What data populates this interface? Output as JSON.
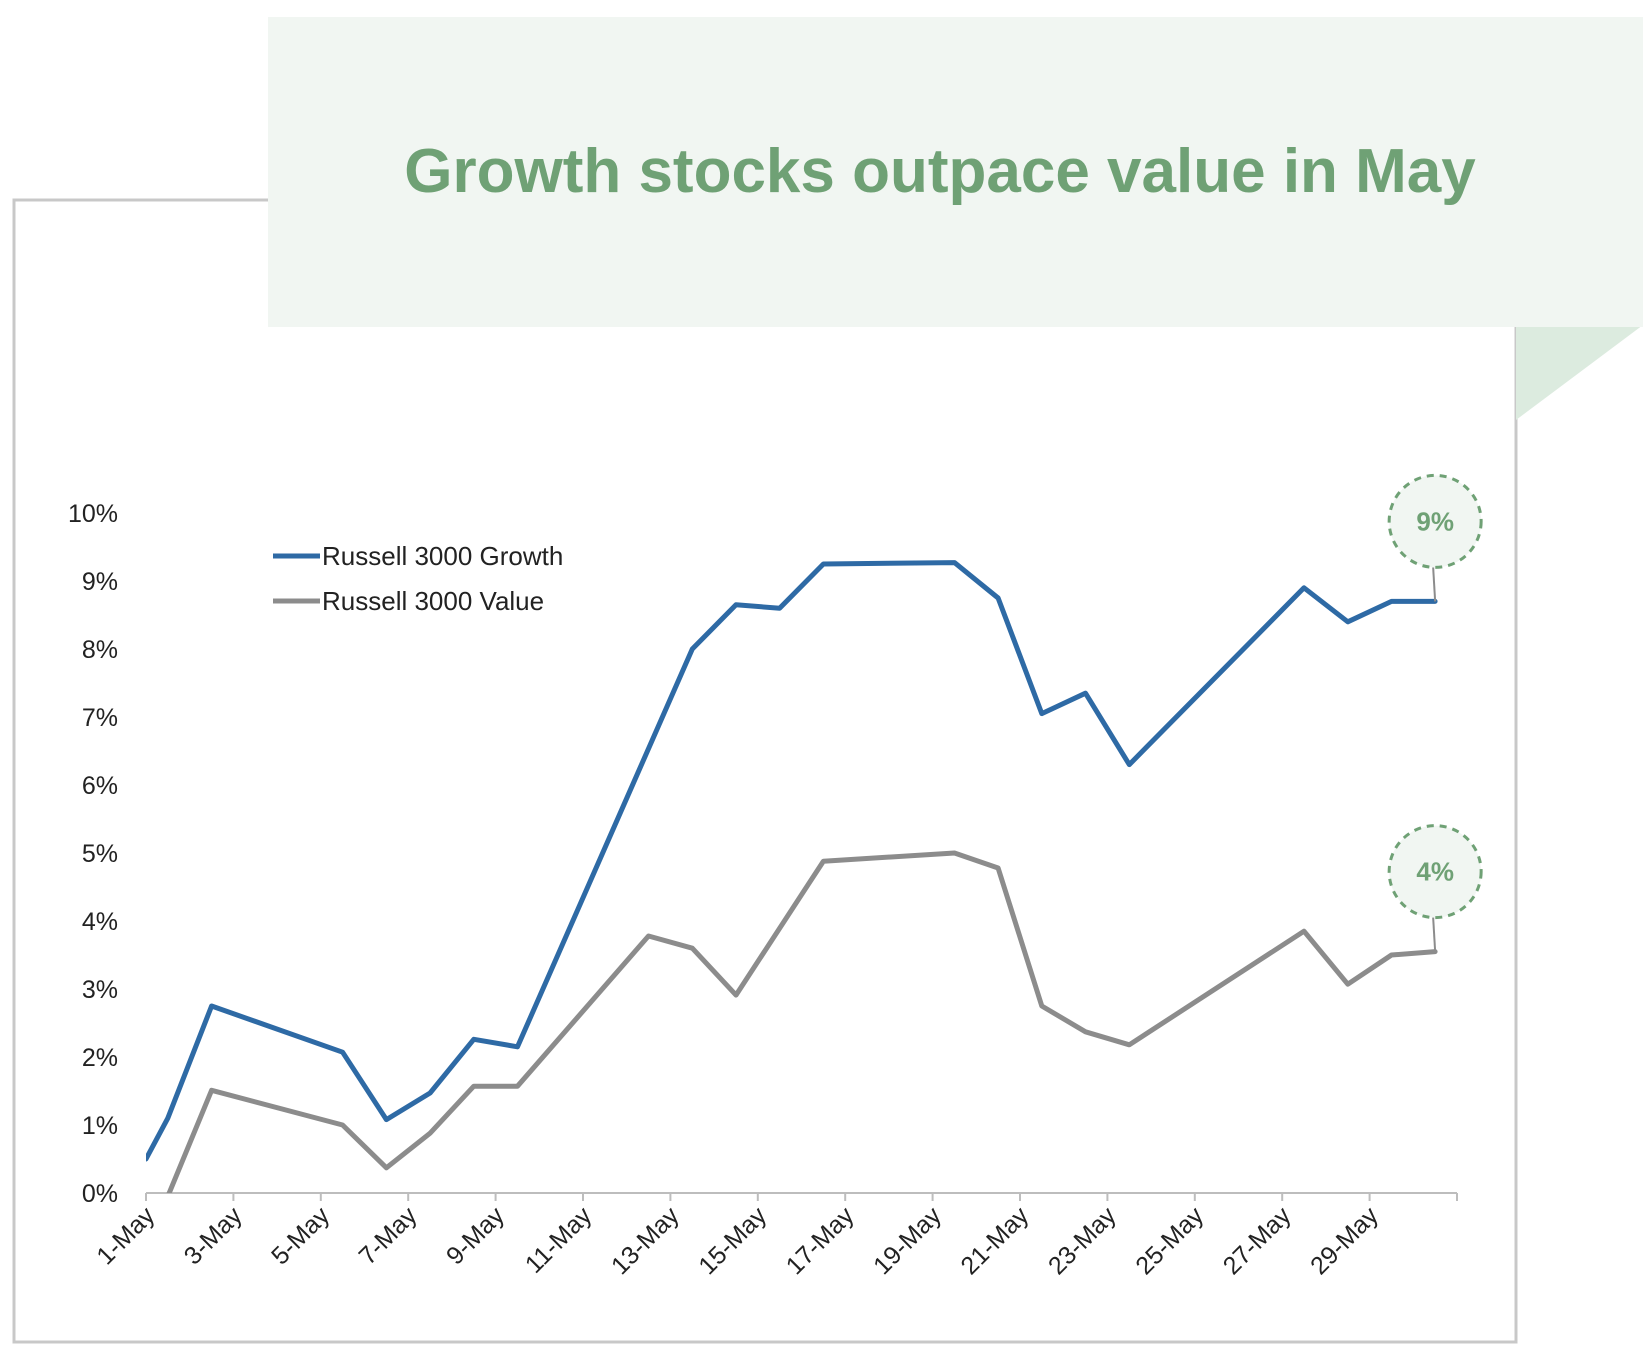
{
  "title": "Growth stocks outpace value in May",
  "colors": {
    "title": "#6fa175",
    "banner_fill": "#f1f6f2",
    "banner_fold": "#dcebdf",
    "frame": "#c8c8c8",
    "growth": "#2e6aa5",
    "value": "#8c8c8c",
    "callout": "#6fa175"
  },
  "chart_data": {
    "type": "line",
    "x_unit": "day of May",
    "x_ticks": [
      1,
      3,
      5,
      7,
      9,
      11,
      13,
      15,
      17,
      19,
      21,
      23,
      25,
      27,
      29
    ],
    "x_tick_labels": [
      "1-May",
      "3-May",
      "5-May",
      "7-May",
      "9-May",
      "11-May",
      "13-May",
      "15-May",
      "17-May",
      "19-May",
      "21-May",
      "23-May",
      "25-May",
      "27-May",
      "29-May"
    ],
    "xlim": [
      1,
      31
    ],
    "ylim": [
      0,
      10
    ],
    "y_ticks": [
      0,
      1,
      2,
      3,
      4,
      5,
      6,
      7,
      8,
      9,
      10
    ],
    "y_tick_labels": [
      "0%",
      "1%",
      "2%",
      "3%",
      "4%",
      "5%",
      "6%",
      "7%",
      "8%",
      "9%",
      "10%"
    ],
    "legend_position": "top-left",
    "grid": false,
    "series": [
      {
        "name": "Russell 3000 Growth",
        "color": "#2e6aa5",
        "x": [
          1,
          1.5,
          2.5,
          5.5,
          6.5,
          7.5,
          8.5,
          9.5,
          13.5,
          14.5,
          15.5,
          16.5,
          19.5,
          20.5,
          21.5,
          22.5,
          23.5,
          27.5,
          28.5,
          29.5,
          30.5
        ],
        "y": [
          0.5,
          1.1,
          2.75,
          2.07,
          1.08,
          1.47,
          2.26,
          2.15,
          8.0,
          8.65,
          8.6,
          9.25,
          9.27,
          8.75,
          7.05,
          7.35,
          6.3,
          8.9,
          8.4,
          8.7,
          8.7
        ]
      },
      {
        "name": "Russell 3000 Value",
        "color": "#8c8c8c",
        "x": [
          1.5,
          2.5,
          5.5,
          6.5,
          7.5,
          8.5,
          9.5,
          12.5,
          13.5,
          14.5,
          16.5,
          19.5,
          20.5,
          21.5,
          22.5,
          23.5,
          27.5,
          28.5,
          29.5,
          30.5
        ],
        "y": [
          -0.05,
          1.51,
          1.0,
          0.37,
          0.88,
          1.57,
          1.57,
          3.78,
          3.6,
          2.91,
          4.88,
          5.0,
          4.78,
          2.75,
          2.37,
          2.18,
          3.85,
          3.07,
          3.5,
          3.55
        ]
      }
    ],
    "callouts": [
      {
        "label": "9%",
        "x": 30.5,
        "y": 8.7
      },
      {
        "label": "4%",
        "x": 30.5,
        "y": 3.55
      }
    ]
  }
}
